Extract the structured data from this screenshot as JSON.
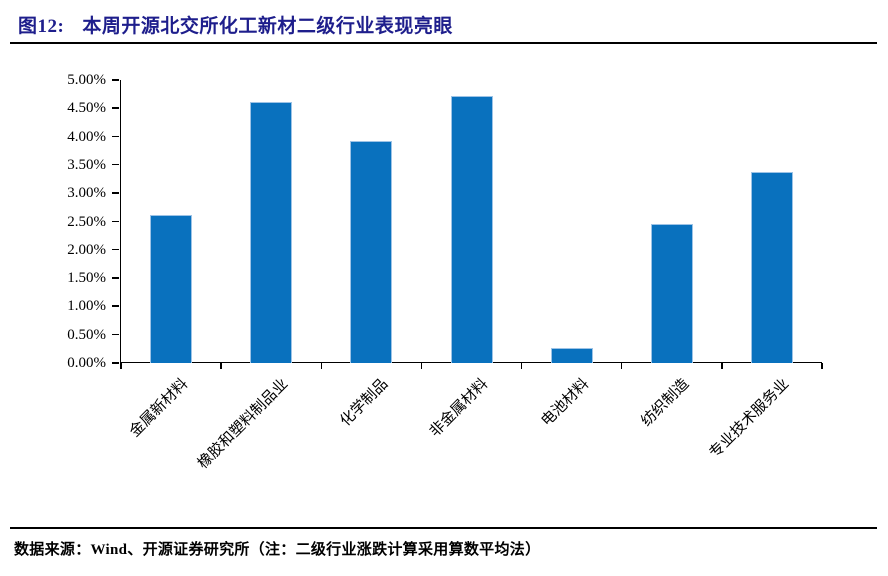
{
  "header": {
    "figure_label": "图12:",
    "title": "本周开源北交所化工新材二级行业表现亮眼"
  },
  "footer": {
    "source": "数据来源：Wind、开源证券研究所（注：二级行业涨跌计算采用算数平均法）"
  },
  "colors": {
    "title_text": "#1E1E8C",
    "rule": "#000000",
    "axis": "#000000",
    "tick_text": "#000000",
    "bar_fill": "#0971BE",
    "bar_edge": "#9DC3E6"
  },
  "chart_data": {
    "type": "bar",
    "title": "",
    "xlabel": "",
    "ylabel": "",
    "categories": [
      "金属新材料",
      "橡胶和塑料制品业",
      "化学制品",
      "非金属材料",
      "电池材料",
      "纺织制造",
      "专业技术服务业"
    ],
    "values": [
      2.62,
      4.62,
      3.92,
      4.71,
      0.26,
      2.45,
      3.38
    ],
    "unit": "%",
    "ylim": [
      0,
      5
    ],
    "ytick_step": 0.5,
    "ytick_labels": [
      "0.00%",
      "0.50%",
      "1.00%",
      "1.50%",
      "2.00%",
      "2.50%",
      "3.00%",
      "3.50%",
      "4.00%",
      "4.50%",
      "5.00%"
    ],
    "grid": false,
    "legend_position": "none"
  }
}
